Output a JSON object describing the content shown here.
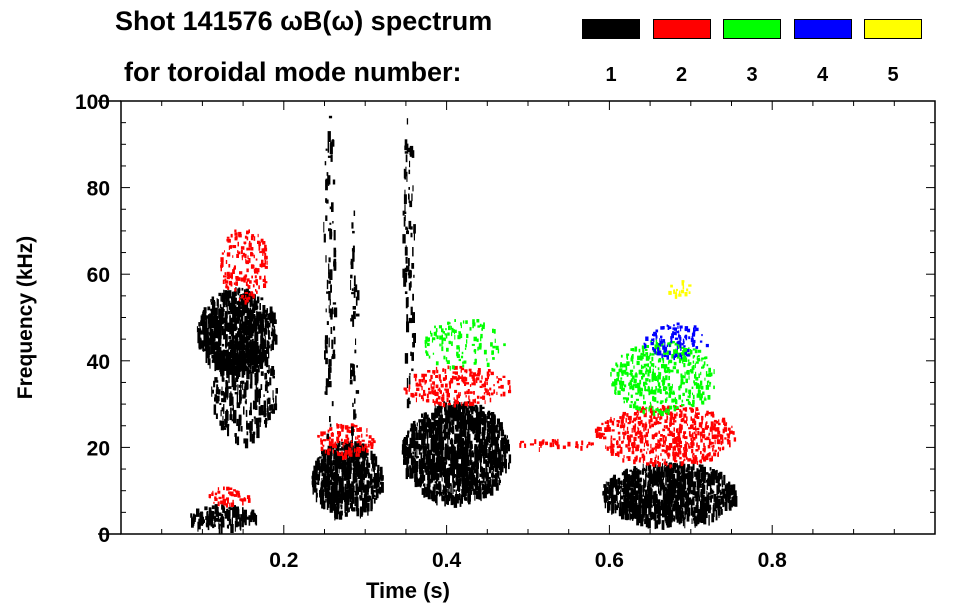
{
  "chart_data": {
    "type": "heatmap",
    "title": "Shot 141576 ωB(ω) spectrum",
    "subtitle": "for toroidal mode number:",
    "xlabel": "Time (s)",
    "ylabel": "Frequency (kHz)",
    "xlim": [
      0,
      1.0
    ],
    "ylim": [
      0,
      100
    ],
    "xticks": [
      0.2,
      0.4,
      0.6,
      0.8
    ],
    "xtick_labels": [
      "0.2",
      "0.4",
      "0.6",
      "0.8"
    ],
    "yticks": [
      0,
      20,
      40,
      60,
      80,
      100
    ],
    "ytick_labels": [
      "0",
      "20",
      "40",
      "60",
      "80",
      "100"
    ],
    "legend": {
      "placement": "top",
      "entries": [
        {
          "label": "1",
          "color": "#000000"
        },
        {
          "label": "2",
          "color": "#ff0000"
        },
        {
          "label": "3",
          "color": "#00ff00"
        },
        {
          "label": "4",
          "color": "#0000ff"
        },
        {
          "label": "5",
          "color": "#ffff00"
        }
      ]
    },
    "regions": [
      {
        "mode": 1,
        "t": [
          0.093,
          0.19
        ],
        "f": [
          38,
          57
        ],
        "density": 0.9
      },
      {
        "mode": 1,
        "t": [
          0.11,
          0.19
        ],
        "f": [
          22,
          45
        ],
        "density": 0.3
      },
      {
        "mode": 2,
        "t": [
          0.12,
          0.18
        ],
        "f": [
          54,
          71
        ],
        "density": 0.35
      },
      {
        "mode": 1,
        "t": [
          0.083,
          0.166
        ],
        "f": [
          2,
          7
        ],
        "density": 0.7
      },
      {
        "mode": 2,
        "t": [
          0.1,
          0.16
        ],
        "f": [
          7,
          11
        ],
        "density": 0.35
      },
      {
        "mode": 1,
        "t": [
          0.233,
          0.32
        ],
        "f": [
          5,
          22
        ],
        "density": 0.85
      },
      {
        "mode": 2,
        "t": [
          0.24,
          0.31
        ],
        "f": [
          18,
          26
        ],
        "density": 0.4
      },
      {
        "mode": 1,
        "t": [
          0.248,
          0.262
        ],
        "f": [
          20,
          100
        ],
        "density": 0.15
      },
      {
        "mode": 1,
        "t": [
          0.28,
          0.29
        ],
        "f": [
          20,
          80
        ],
        "density": 0.12
      },
      {
        "mode": 1,
        "t": [
          0.344,
          0.478
        ],
        "f": [
          8,
          31
        ],
        "density": 0.85
      },
      {
        "mode": 1,
        "t": [
          0.345,
          0.36
        ],
        "f": [
          30,
          98
        ],
        "density": 0.15
      },
      {
        "mode": 2,
        "t": [
          0.345,
          0.478
        ],
        "f": [
          30,
          39
        ],
        "density": 0.4
      },
      {
        "mode": 3,
        "t": [
          0.37,
          0.47
        ],
        "f": [
          38,
          50
        ],
        "density": 0.2
      },
      {
        "mode": 2,
        "t": [
          0.48,
          0.58
        ],
        "f": [
          20,
          22
        ],
        "density": 0.3
      },
      {
        "mode": 1,
        "t": [
          0.59,
          0.755
        ],
        "f": [
          3,
          17
        ],
        "density": 0.85
      },
      {
        "mode": 2,
        "t": [
          0.58,
          0.755
        ],
        "f": [
          16,
          30
        ],
        "density": 0.5
      },
      {
        "mode": 3,
        "t": [
          0.6,
          0.73
        ],
        "f": [
          28,
          45
        ],
        "density": 0.4
      },
      {
        "mode": 4,
        "t": [
          0.64,
          0.72
        ],
        "f": [
          41,
          49
        ],
        "density": 0.35
      },
      {
        "mode": 5,
        "t": [
          0.67,
          0.7
        ],
        "f": [
          55,
          59
        ],
        "density": 0.3
      }
    ]
  }
}
